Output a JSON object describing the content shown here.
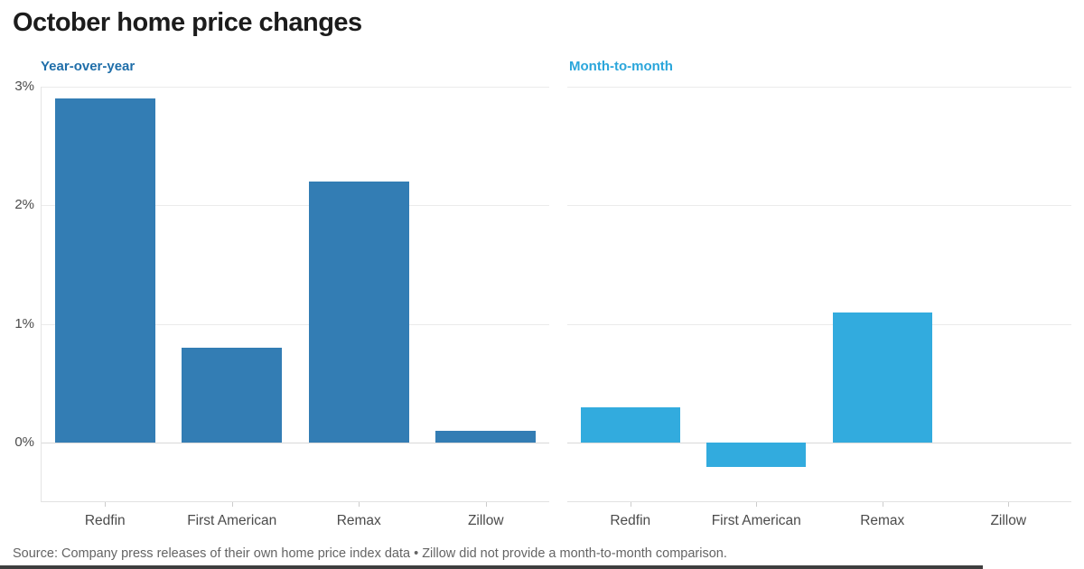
{
  "title": "October home price changes",
  "source_note": "Source: Company press releases of their own home price index data • Zillow did not provide a month-to-month comparison.",
  "colors": {
    "title_text": "#1c1c1c",
    "yoy_bar": "#337db4",
    "mtm_bar": "#32abde",
    "yoy_title": "#1f6ea9",
    "mtm_title": "#2ba6db",
    "axis_text": "#4b4b4b",
    "gridline": "#ebebeb",
    "zero_line": "#d9d9d9",
    "source_text": "#646464",
    "bottom_bar": "#3e3e3e"
  },
  "chart_data": [
    {
      "type": "bar",
      "title": "Year-over-year",
      "categories": [
        "Redfin",
        "First American",
        "Remax",
        "Zillow"
      ],
      "values": [
        2.9,
        0.8,
        2.2,
        0.1
      ],
      "value_unit": "percent",
      "bar_color": "#337db4",
      "title_color": "#1f6ea9",
      "ylim": [
        -0.5,
        3
      ],
      "yticks": [
        {
          "value": 3,
          "label": "3%"
        },
        {
          "value": 2,
          "label": "2%"
        },
        {
          "value": 1,
          "label": "1%"
        },
        {
          "value": 0,
          "label": "0%"
        }
      ],
      "grid": true,
      "legend": "none"
    },
    {
      "type": "bar",
      "title": "Month-to-month",
      "categories": [
        "Redfin",
        "First American",
        "Remax",
        "Zillow"
      ],
      "values": [
        0.3,
        -0.2,
        1.1,
        null
      ],
      "value_unit": "percent",
      "bar_color": "#32abde",
      "title_color": "#2ba6db",
      "ylim": [
        -0.5,
        3
      ],
      "yticks": [],
      "grid": true,
      "legend": "none"
    }
  ]
}
